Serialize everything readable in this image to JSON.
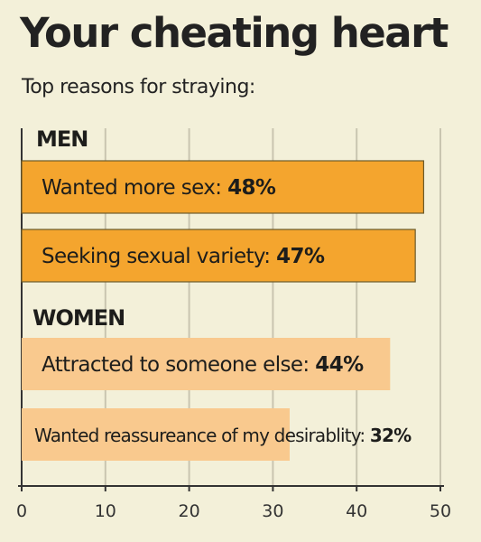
{
  "title": "Your cheating heart",
  "subtitle": "Top reasons for straying:",
  "colors": {
    "background": "#f3f0d9",
    "men_bar": "#f4a52e",
    "women_bar": "#f9c98e",
    "gridline": "#c9c5b0",
    "axis": "#333333"
  },
  "chart_data": {
    "type": "bar",
    "orientation": "horizontal",
    "xlim": [
      0,
      50
    ],
    "xticks": [
      "0",
      "10",
      "20",
      "30",
      "40",
      "50"
    ],
    "grid": true,
    "groups": [
      {
        "label": "MEN",
        "bars": [
          {
            "label": "Wanted more sex: 48%",
            "value": 48
          },
          {
            "label": "Seeking sexual variety: 47%",
            "value": 47
          }
        ]
      },
      {
        "label": "WOMEN",
        "bars": [
          {
            "label": "Attracted to someone else: 44%",
            "value": 44
          },
          {
            "label": "Wanted reassureance of my desirablity: 32%",
            "value": 32
          }
        ]
      }
    ]
  }
}
